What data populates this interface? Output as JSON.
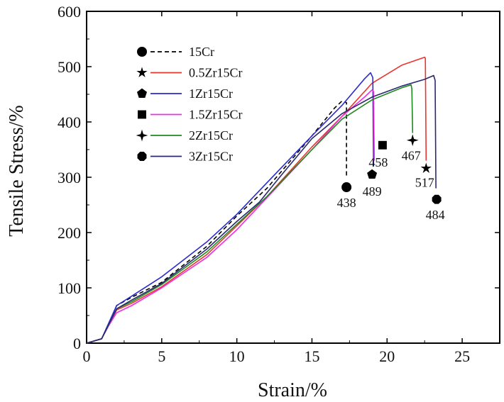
{
  "chart_data": {
    "type": "line",
    "title": "",
    "xlabel": "Strain/%",
    "ylabel": "Tensile Stress/%",
    "xlim": [
      0,
      27.5
    ],
    "ylim": [
      0,
      600
    ],
    "xticks": [
      0,
      5,
      10,
      15,
      20,
      25
    ],
    "yticks": [
      0,
      100,
      200,
      300,
      400,
      500,
      600
    ],
    "xtick_labels": [
      "0",
      "5",
      "10",
      "15",
      "20",
      "25"
    ],
    "ytick_labels": [
      "0",
      "100",
      "200",
      "300",
      "400",
      "500",
      "600"
    ],
    "grid": false,
    "legend_position": "top-left",
    "series": [
      {
        "name": "15Cr",
        "color": "#000000",
        "dash": true,
        "marker": "circle",
        "x": [
          0,
          1,
          1.5,
          2,
          3,
          5,
          8,
          10,
          12,
          15,
          16.5,
          17.0,
          17.3,
          17.3
        ],
        "y": [
          0,
          8,
          35,
          68,
          83,
          110,
          175,
          230,
          280,
          375,
          425,
          438,
          435,
          300
        ],
        "callout": {
          "label": "438",
          "x": 17.3,
          "y": 282
        }
      },
      {
        "name": "0.5Zr15Cr",
        "color": "#e8362f",
        "dash": false,
        "marker": "star",
        "x": [
          0,
          1,
          1.5,
          2,
          3,
          5,
          8,
          10,
          12,
          15,
          17,
          19,
          21,
          22.5,
          22.55,
          22.6
        ],
        "y": [
          0,
          8,
          35,
          60,
          72,
          102,
          160,
          212,
          265,
          355,
          410,
          470,
          503,
          517,
          515,
          330
        ],
        "callout": {
          "label": "517",
          "x": 22.6,
          "y": 316
        }
      },
      {
        "name": "1Zr15Cr",
        "color": "#2a2ad0",
        "dash": false,
        "marker": "pentagon",
        "x": [
          0,
          1,
          1.5,
          2,
          3,
          5,
          8,
          10,
          12,
          15,
          17,
          18.5,
          18.9,
          19.05,
          19.1
        ],
        "y": [
          0,
          8,
          38,
          68,
          85,
          120,
          183,
          233,
          290,
          375,
          430,
          478,
          489,
          480,
          320
        ],
        "callout": {
          "label": "489",
          "x": 19.0,
          "y": 305
        }
      },
      {
        "name": "1.5Zr15Cr",
        "color": "#f02ce6",
        "dash": false,
        "marker": "square",
        "x": [
          0,
          1,
          1.5,
          2,
          3,
          5,
          8,
          10,
          12,
          15,
          17,
          18.5,
          19.0,
          19.1,
          19.15
        ],
        "y": [
          0,
          8,
          33,
          55,
          68,
          100,
          155,
          205,
          263,
          350,
          410,
          445,
          458,
          455,
          330
        ],
        "callout": {
          "label": "458",
          "x": 19.7,
          "y": 358
        }
      },
      {
        "name": "2Zr15Cr",
        "color": "#1e8a1e",
        "dash": false,
        "marker": "four-point-star",
        "x": [
          0,
          1,
          1.5,
          2,
          3,
          5,
          8,
          10,
          12,
          15,
          17,
          19,
          21,
          21.6,
          21.65,
          21.7
        ],
        "y": [
          0,
          8,
          35,
          62,
          75,
          106,
          165,
          215,
          265,
          350,
          405,
          440,
          462,
          467,
          460,
          380
        ],
        "callout": {
          "label": "467",
          "x": 21.7,
          "y": 367
        }
      },
      {
        "name": "3Zr15Cr",
        "color": "#2b2870",
        "dash": false,
        "marker": "octagon",
        "x": [
          0,
          1,
          1.5,
          2,
          3,
          5,
          8,
          10,
          11.5,
          13,
          15,
          17,
          19,
          21,
          22.5,
          23.1,
          23.2,
          23.25
        ],
        "y": [
          0,
          8,
          35,
          62,
          78,
          108,
          170,
          220,
          255,
          305,
          370,
          415,
          445,
          465,
          477,
          484,
          475,
          280
        ],
        "callout": {
          "label": "484",
          "x": 23.3,
          "y": 260
        }
      }
    ]
  }
}
